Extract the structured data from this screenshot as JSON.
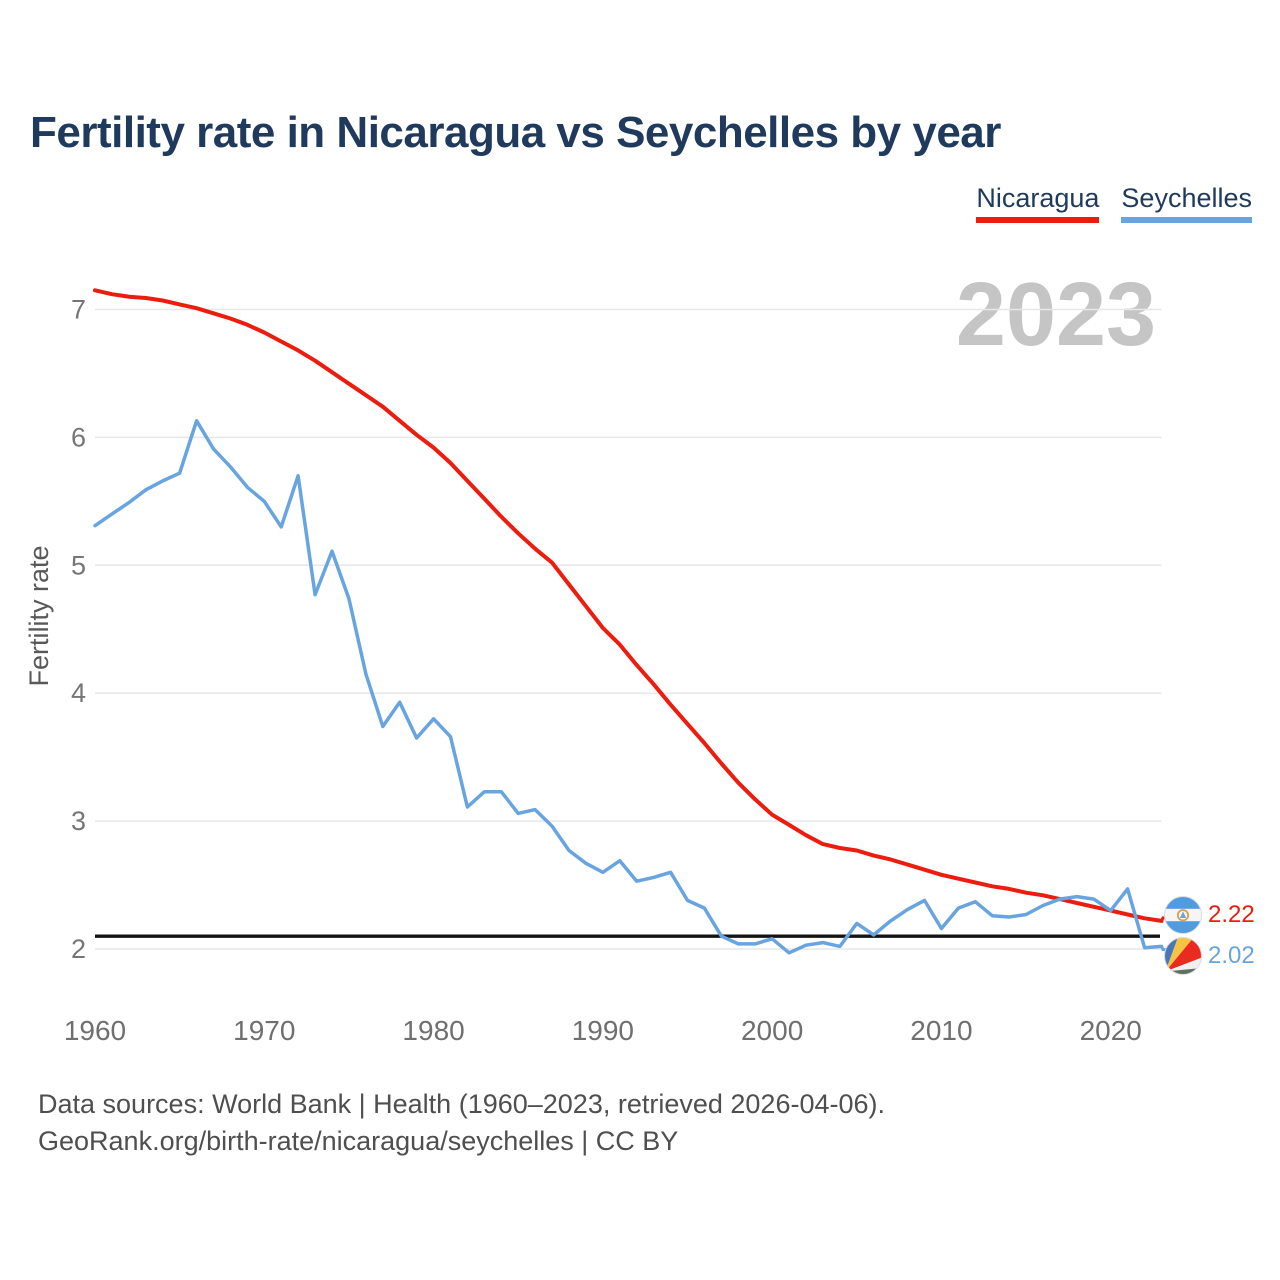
{
  "title": "Fertility rate in Nicaragua vs Seychelles by year",
  "watermark": "2023",
  "legend": [
    {
      "label": "Nicaragua",
      "color": "#ec1c0e"
    },
    {
      "label": "Seychelles",
      "color": "#68a4e0"
    }
  ],
  "footer": {
    "line1": "Data sources: World Bank | Health (1960–2023, retrieved 2026-04-06).",
    "line2": "GeoRank.org/birth-rate/nicaragua/seychelles | CC BY"
  },
  "icons": [
    {
      "name": "nicaragua-flag-icon"
    },
    {
      "name": "seychelles-flag-icon"
    }
  ],
  "colors": {
    "title": "#1f3a5c",
    "watermark": "#c5c5c5",
    "gridline": "#e7e7e7",
    "axis_text": "#767676",
    "axis_label": "#595959",
    "reference_line": "#141414",
    "nicaragua": "#ec1c0e",
    "seychelles": "#68a4e0"
  },
  "chart_data": {
    "type": "line",
    "title": "Fertility rate in Nicaragua vs Seychelles by year",
    "xlabel": "",
    "ylabel": "Fertility rate",
    "x_start": 1960,
    "x_end": 2023,
    "x_ticks": [
      1960,
      1970,
      1980,
      1990,
      2000,
      2010,
      2020
    ],
    "y_ticks": [
      2,
      3,
      4,
      5,
      6,
      7
    ],
    "ylim": [
      1.85,
      7.3
    ],
    "grid": true,
    "legend_position": "top-right",
    "watermark_year": "2023",
    "reference_line": 2.1,
    "series": [
      {
        "name": "Nicaragua",
        "color": "#ec1c0e",
        "final_label": "2.22",
        "values": [
          7.15,
          7.12,
          7.1,
          7.09,
          7.07,
          7.04,
          7.01,
          6.97,
          6.93,
          6.88,
          6.82,
          6.75,
          6.68,
          6.6,
          6.51,
          6.42,
          6.33,
          6.24,
          6.13,
          6.02,
          5.92,
          5.8,
          5.66,
          5.52,
          5.38,
          5.25,
          5.13,
          5.02,
          4.85,
          4.68,
          4.51,
          4.38,
          4.22,
          4.07,
          3.91,
          3.76,
          3.61,
          3.45,
          3.3,
          3.17,
          3.05,
          2.97,
          2.89,
          2.82,
          2.79,
          2.77,
          2.73,
          2.7,
          2.66,
          2.62,
          2.58,
          2.55,
          2.52,
          2.49,
          2.47,
          2.44,
          2.42,
          2.39,
          2.36,
          2.33,
          2.3,
          2.27,
          2.24,
          2.22
        ]
      },
      {
        "name": "Seychelles",
        "color": "#68a4e0",
        "final_label": "2.02",
        "values": [
          5.31,
          5.4,
          5.49,
          5.59,
          5.66,
          5.72,
          6.13,
          5.91,
          5.77,
          5.61,
          5.5,
          5.3,
          5.7,
          4.77,
          5.11,
          4.74,
          4.15,
          3.74,
          3.93,
          3.65,
          3.8,
          3.66,
          3.11,
          3.23,
          3.23,
          3.06,
          3.09,
          2.96,
          2.77,
          2.67,
          2.6,
          2.69,
          2.53,
          2.56,
          2.6,
          2.38,
          2.32,
          2.1,
          2.04,
          2.04,
          2.08,
          1.97,
          2.03,
          2.05,
          2.02,
          2.2,
          2.11,
          2.22,
          2.31,
          2.38,
          2.16,
          2.32,
          2.37,
          2.26,
          2.25,
          2.27,
          2.34,
          2.39,
          2.41,
          2.39,
          2.3,
          2.47,
          2.01,
          2.02
        ]
      }
    ]
  }
}
